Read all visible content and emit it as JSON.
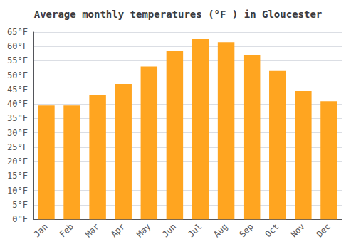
{
  "chart_data": {
    "type": "bar",
    "title": "Average monthly temperatures (°F ) in Gloucester",
    "categories": [
      "Jan",
      "Feb",
      "Mar",
      "Apr",
      "May",
      "Jun",
      "Jul",
      "Aug",
      "Sep",
      "Oct",
      "Nov",
      "Dec"
    ],
    "values": [
      39.5,
      39.5,
      43.0,
      47.0,
      53.0,
      58.5,
      62.5,
      61.5,
      57.0,
      51.5,
      44.5,
      41.0
    ],
    "color": "#FFA520",
    "ylim": [
      0,
      65
    ],
    "yticks": [
      {
        "value": 0,
        "label": "0°F"
      },
      {
        "value": 5,
        "label": "5°F"
      },
      {
        "value": 10,
        "label": "10°F"
      },
      {
        "value": 15,
        "label": "15°F"
      },
      {
        "value": 20,
        "label": "20°F"
      },
      {
        "value": 25,
        "label": "25°F"
      },
      {
        "value": 30,
        "label": "30°F"
      },
      {
        "value": 35,
        "label": "35°F"
      },
      {
        "value": 40,
        "label": "40°F"
      },
      {
        "value": 45,
        "label": "45°F"
      },
      {
        "value": 50,
        "label": "50°F"
      },
      {
        "value": 55,
        "label": "55°F"
      },
      {
        "value": 60,
        "label": "60°F"
      },
      {
        "value": 65,
        "label": "65°F"
      }
    ],
    "grid": true
  }
}
